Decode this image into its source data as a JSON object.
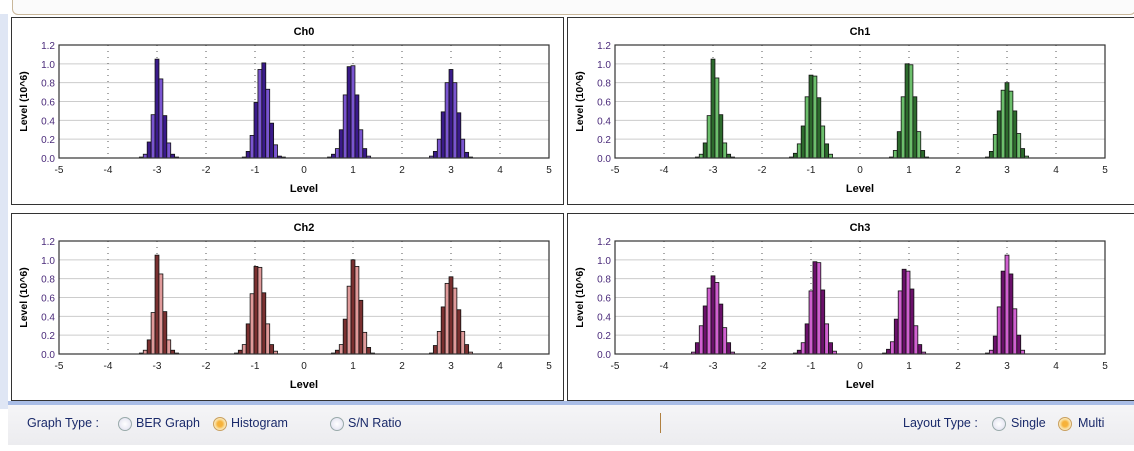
{
  "chart_data": [
    {
      "type": "bar",
      "title": "Ch0",
      "xlabel": "Level",
      "ylabel": "Level (10^6)",
      "xlim": [
        -5,
        5
      ],
      "ylim": [
        0,
        1.2
      ],
      "xticks": [
        "-5",
        "-4",
        "-3",
        "-2",
        "-1",
        "0",
        "1",
        "2",
        "3",
        "4",
        "5"
      ],
      "yticks": [
        "0.0",
        "0.2",
        "0.4",
        "0.6",
        "0.8",
        "1.0",
        "1.2"
      ],
      "grid": "vertical dotted, horizontal solid",
      "bin_width": 0.08,
      "colors": [
        "#7a55d0",
        "#3a1a8a"
      ],
      "peaks": [
        {
          "center": -3.0,
          "values": [
            0,
            0.01,
            0.04,
            0.17,
            0.46,
            1.05,
            0.84,
            0.45,
            0.16,
            0.04,
            0.01
          ]
        },
        {
          "center": -0.82,
          "values": [
            0.01,
            0.07,
            0.24,
            0.59,
            0.94,
            1.01,
            0.73,
            0.37,
            0.14,
            0.02,
            0.01
          ]
        },
        {
          "center": 0.92,
          "values": [
            0.01,
            0.04,
            0.1,
            0.3,
            0.67,
            0.97,
            0.98,
            0.67,
            0.3,
            0.1,
            0.02
          ]
        },
        {
          "center": 3.0,
          "values": [
            0.02,
            0.07,
            0.2,
            0.49,
            0.8,
            0.94,
            0.8,
            0.48,
            0.2,
            0.06,
            0.01
          ]
        }
      ]
    },
    {
      "type": "bar",
      "title": "Ch1",
      "xlabel": "Level",
      "ylabel": "Level (10^6)",
      "xlim": [
        -5,
        5
      ],
      "ylim": [
        0,
        1.2
      ],
      "xticks": [
        "-5",
        "-4",
        "-3",
        "-2",
        "-1",
        "0",
        "1",
        "2",
        "3",
        "4",
        "5"
      ],
      "yticks": [
        "0.0",
        "0.2",
        "0.4",
        "0.6",
        "0.8",
        "1.0",
        "1.2"
      ],
      "grid": "vertical dotted, horizontal solid",
      "bin_width": 0.08,
      "colors": [
        "#6cbf6c",
        "#2d6b2d"
      ],
      "peaks": [
        {
          "center": -3.0,
          "values": [
            0,
            0.01,
            0.04,
            0.16,
            0.45,
            1.05,
            0.85,
            0.46,
            0.16,
            0.04,
            0.01
          ]
        },
        {
          "center": -1.0,
          "values": [
            0.01,
            0.05,
            0.15,
            0.34,
            0.65,
            0.88,
            0.87,
            0.64,
            0.34,
            0.15,
            0.04
          ]
        },
        {
          "center": 0.96,
          "values": [
            0,
            0.01,
            0.08,
            0.28,
            0.65,
            1.0,
            0.99,
            0.65,
            0.28,
            0.08,
            0.01
          ]
        },
        {
          "center": 3.0,
          "values": [
            0.01,
            0.07,
            0.25,
            0.5,
            0.72,
            0.8,
            0.71,
            0.5,
            0.26,
            0.1,
            0.02
          ]
        }
      ]
    },
    {
      "type": "bar",
      "title": "Ch2",
      "xlabel": "Level",
      "ylabel": "Level (10^6)",
      "xlim": [
        -5,
        5
      ],
      "ylim": [
        0,
        1.2
      ],
      "xticks": [
        "-5",
        "-4",
        "-3",
        "-2",
        "-1",
        "0",
        "1",
        "2",
        "3",
        "4",
        "5"
      ],
      "yticks": [
        "0.0",
        "0.2",
        "0.4",
        "0.6",
        "0.8",
        "1.0",
        "1.2"
      ],
      "grid": "vertical dotted, horizontal solid",
      "bin_width": 0.08,
      "colors": [
        "#e09a9a",
        "#7a3030"
      ],
      "peaks": [
        {
          "center": -3.0,
          "values": [
            0,
            0.01,
            0.04,
            0.15,
            0.44,
            1.05,
            0.85,
            0.45,
            0.15,
            0.04,
            0.01
          ]
        },
        {
          "center": -0.98,
          "values": [
            0.01,
            0.04,
            0.1,
            0.32,
            0.64,
            0.93,
            0.92,
            0.65,
            0.32,
            0.1,
            0.03
          ]
        },
        {
          "center": 1.0,
          "values": [
            0.01,
            0.04,
            0.1,
            0.37,
            0.72,
            1.0,
            0.93,
            0.57,
            0.23,
            0.07,
            0.01
          ]
        },
        {
          "center": 3.0,
          "values": [
            0.01,
            0.09,
            0.24,
            0.5,
            0.75,
            0.82,
            0.7,
            0.47,
            0.24,
            0.1,
            0.02
          ]
        }
      ]
    },
    {
      "type": "bar",
      "title": "Ch3",
      "xlabel": "Level",
      "ylabel": "Level (10^6)",
      "xlim": [
        -5,
        5
      ],
      "ylim": [
        0,
        1.2
      ],
      "xticks": [
        "-5",
        "-4",
        "-3",
        "-2",
        "-1",
        "0",
        "1",
        "2",
        "3",
        "4",
        "5"
      ],
      "yticks": [
        "0.0",
        "0.2",
        "0.4",
        "0.6",
        "0.8",
        "1.0",
        "1.2"
      ],
      "grid": "vertical dotted, horizontal solid",
      "bin_width": 0.08,
      "colors": [
        "#d060d0",
        "#6a106a"
      ],
      "peaks": [
        {
          "center": -3.0,
          "values": [
            0.02,
            0.12,
            0.3,
            0.51,
            0.7,
            0.83,
            0.76,
            0.53,
            0.28,
            0.12,
            0.02
          ]
        },
        {
          "center": -0.92,
          "values": [
            0.01,
            0.04,
            0.12,
            0.32,
            0.67,
            0.98,
            0.97,
            0.68,
            0.32,
            0.12,
            0.03
          ]
        },
        {
          "center": 0.9,
          "values": [
            0.01,
            0.05,
            0.13,
            0.37,
            0.67,
            0.9,
            0.88,
            0.69,
            0.3,
            0.1,
            0.02
          ]
        },
        {
          "center": 2.92,
          "values": [
            0,
            0.01,
            0.04,
            0.19,
            0.5,
            0.88,
            1.05,
            0.85,
            0.48,
            0.2,
            0.04
          ]
        }
      ]
    }
  ],
  "controls": {
    "graph_type_label": "Graph Type :",
    "graph_types": [
      {
        "label": "BER Graph",
        "selected": false
      },
      {
        "label": "Histogram",
        "selected": true
      },
      {
        "label": "S/N Ratio",
        "selected": false
      }
    ],
    "layout_type_label": "Layout Type :",
    "layout_types": [
      {
        "label": "Single",
        "selected": false
      },
      {
        "label": "Multi",
        "selected": true
      }
    ]
  }
}
